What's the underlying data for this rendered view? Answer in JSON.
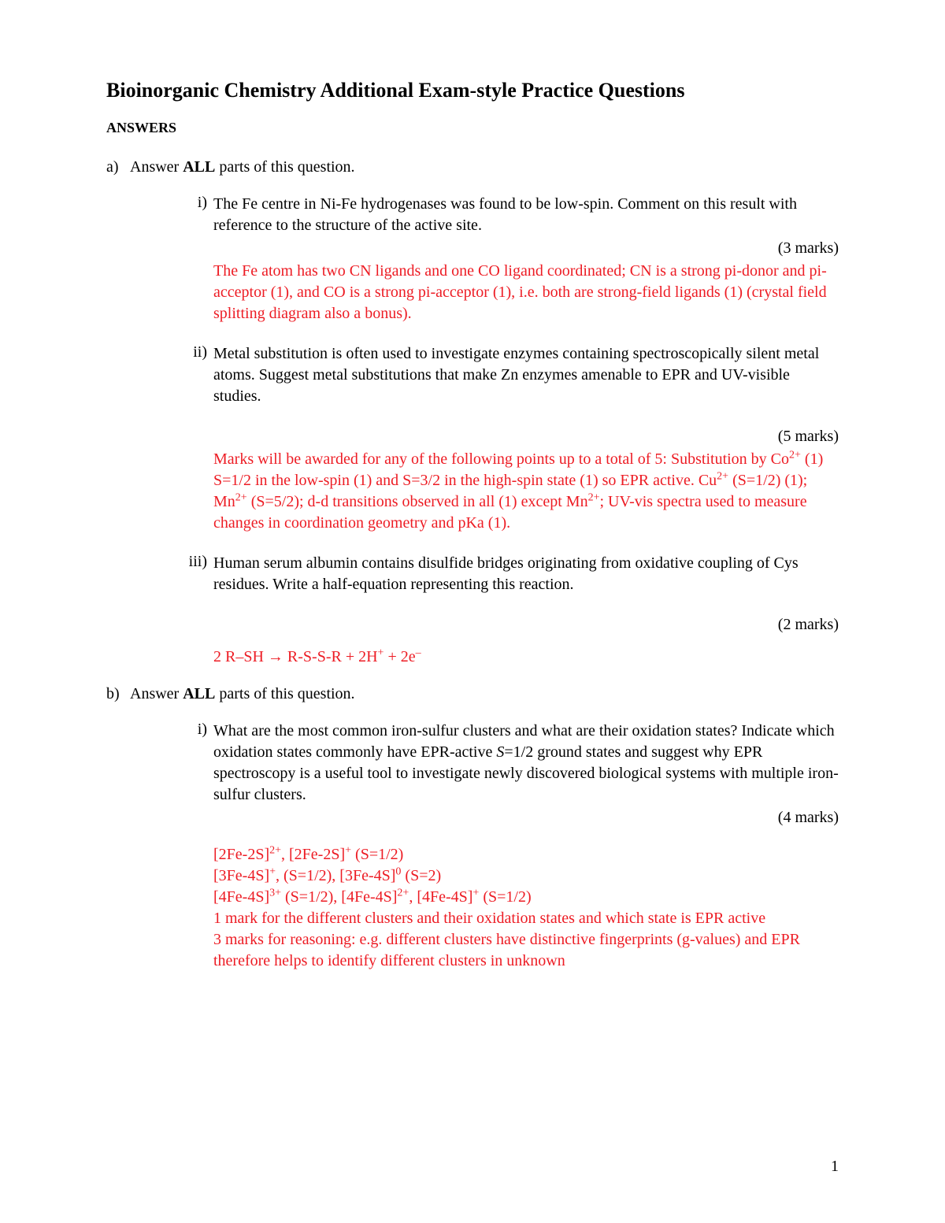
{
  "title": "Bioinorganic Chemistry Additional Exam-style Practice Questions",
  "answers_label": "ANSWERS",
  "page_number": "1",
  "colors": {
    "answer_red": "#ed1c24",
    "text_black": "#000000",
    "background": "#ffffff"
  },
  "section_a": {
    "letter": "a)",
    "intro_pre": "Answer ",
    "intro_bold": "ALL",
    "intro_post": " parts of this question.",
    "parts": {
      "i": {
        "roman": "i)",
        "question": "The Fe centre in Ni-Fe hydrogenases was found to be low-spin. Comment on this result with reference to the structure of the active site.",
        "marks": "(3 marks)",
        "answer": "The Fe atom has two CN ligands and one CO ligand coordinated; CN is a strong pi-donor and pi-acceptor (1), and CO is a strong pi-acceptor (1), i.e. both are strong-field ligands (1) (crystal field splitting diagram also a bonus)."
      },
      "ii": {
        "roman": "ii)",
        "question": "Metal substitution is often used to investigate enzymes containing spectroscopically silent metal atoms. Suggest metal substitutions that make Zn enzymes amenable to EPR and UV-visible studies.",
        "marks": "(5 marks)",
        "answer_pre": "Marks will be awarded for any of the following points up to a total of 5: Substitution by Co",
        "answer_segments": {
          "s1": " (1) S=1/2 in the low-spin (1) and S=3/2 in the high-spin state (1) so EPR active.  Cu",
          "s2": " (S=1/2) (1); Mn",
          "s3": " (S=5/2); d-d transitions observed in all (1) except Mn",
          "s4": "; UV-vis spectra used to measure changes in coordination geometry and pKa (1)."
        }
      },
      "iii": {
        "roman": "iii)",
        "question": "Human serum albumin contains disulfide bridges originating from oxidative coupling of Cys residues. Write a half-equation representing this reaction.",
        "marks": "(2 marks)",
        "equation_pre": "2 R–SH → R-S-S-R + 2H",
        "equation_mid": " + 2e"
      }
    }
  },
  "section_b": {
    "letter": "b)",
    "intro_pre": "Answer ",
    "intro_bold": "ALL",
    "intro_post": " parts of this question.",
    "parts": {
      "i": {
        "roman": "i)",
        "question_pre": "What are the most common iron-sulfur clusters and what are their oxidation states? Indicate which oxidation states commonly have EPR-active ",
        "question_italic": "S",
        "question_post": "=1/2 ground states and suggest why EPR spectroscopy is a useful tool to investigate newly discovered biological systems with multiple iron-sulfur clusters.",
        "marks": "(4 marks)",
        "answer_lines": {
          "l1_a": "[2Fe-2S]",
          "l1_b": ", [2Fe-2S]",
          "l1_c": " (S=1/2)",
          "l2_a": "[3Fe-4S]",
          "l2_b": ", (S=1/2), [3Fe-4S]",
          "l2_c": "  (S=2)",
          "l3_a": "[4Fe-4S]",
          "l3_b": " (S=1/2), [4Fe-4S]",
          "l3_c": ", [4Fe-4S]",
          "l3_d": " (S=1/2)",
          "l4": "1 mark for the different clusters and their oxidation states and which state is EPR active",
          "l5": "3 marks for reasoning: e.g. different clusters have distinctive fingerprints (g-values) and EPR therefore helps to identify different clusters in unknown"
        }
      }
    }
  }
}
